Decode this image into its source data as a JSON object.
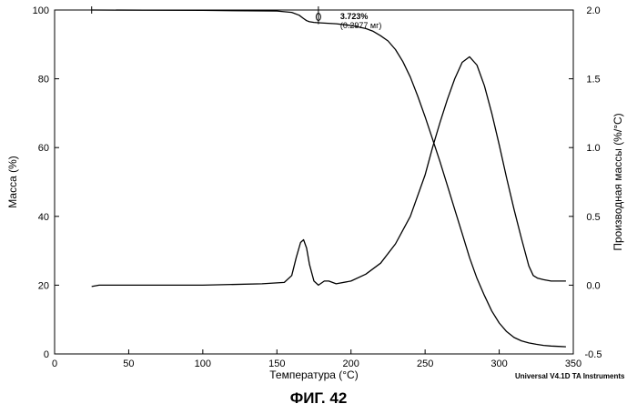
{
  "chart_data": {
    "type": "line",
    "title": "",
    "xlabel": "Температура (°C)",
    "ylabel": "Масса (%)",
    "y2label": "Производная массы (%/°C)",
    "xlim": [
      0,
      350
    ],
    "ylim": [
      0,
      100
    ],
    "y2lim": [
      -0.5,
      2.0
    ],
    "x_ticks": [
      "0",
      "50",
      "100",
      "150",
      "200",
      "250",
      "300",
      "350"
    ],
    "y_ticks": [
      "0",
      "20",
      "40",
      "60",
      "80",
      "100"
    ],
    "y2_ticks": [
      "-0.5",
      "0.0",
      "0.5",
      "1.0",
      "1.5",
      "2.0"
    ],
    "grid": false,
    "series": [
      {
        "axis": "left",
        "x": [
          25,
          100,
          150,
          160,
          165,
          168,
          170,
          172,
          175,
          178,
          182,
          190,
          200,
          210,
          215,
          220,
          225,
          230,
          235,
          240,
          245,
          250,
          255,
          260,
          265,
          270,
          275,
          280,
          285,
          290,
          295,
          300,
          305,
          310,
          315,
          320,
          325,
          330,
          335,
          340,
          345
        ],
        "values": [
          100,
          99.9,
          99.7,
          99.3,
          98.5,
          97.5,
          96.9,
          96.6,
          96.4,
          96.3,
          96.2,
          96.0,
          95.5,
          94.6,
          93.8,
          92.5,
          91.0,
          88.5,
          85.0,
          80.5,
          75.0,
          69.0,
          62.5,
          56.0,
          49.0,
          42.0,
          35.0,
          28.0,
          22.0,
          17.0,
          12.5,
          9.0,
          6.5,
          4.8,
          3.8,
          3.2,
          2.8,
          2.5,
          2.3,
          2.2,
          2.1
        ]
      },
      {
        "axis": "right",
        "x": [
          25,
          30,
          40,
          60,
          100,
          140,
          155,
          160,
          163,
          166,
          168,
          170,
          172,
          175,
          178,
          182,
          185,
          190,
          200,
          210,
          220,
          230,
          240,
          250,
          255,
          260,
          265,
          270,
          275,
          280,
          285,
          290,
          295,
          300,
          305,
          310,
          315,
          320,
          323,
          326,
          330,
          335,
          340,
          345
        ],
        "values": [
          -0.01,
          0.0,
          0.0,
          0.0,
          0.0,
          0.01,
          0.02,
          0.07,
          0.2,
          0.31,
          0.33,
          0.27,
          0.15,
          0.03,
          0.0,
          0.03,
          0.03,
          0.01,
          0.03,
          0.08,
          0.16,
          0.3,
          0.5,
          0.8,
          1.0,
          1.18,
          1.35,
          1.5,
          1.62,
          1.66,
          1.6,
          1.45,
          1.25,
          1.02,
          0.78,
          0.55,
          0.34,
          0.14,
          0.07,
          0.05,
          0.04,
          0.03,
          0.03,
          0.03
        ]
      }
    ],
    "annotation": {
      "x": 178,
      "y": 98,
      "lines": [
        "3.723%",
        "(0.2977 мг)"
      ]
    }
  },
  "footer": {
    "instrument": "Universal V4.1D TA Instruments",
    "figure_label": "ФИГ. 42"
  }
}
